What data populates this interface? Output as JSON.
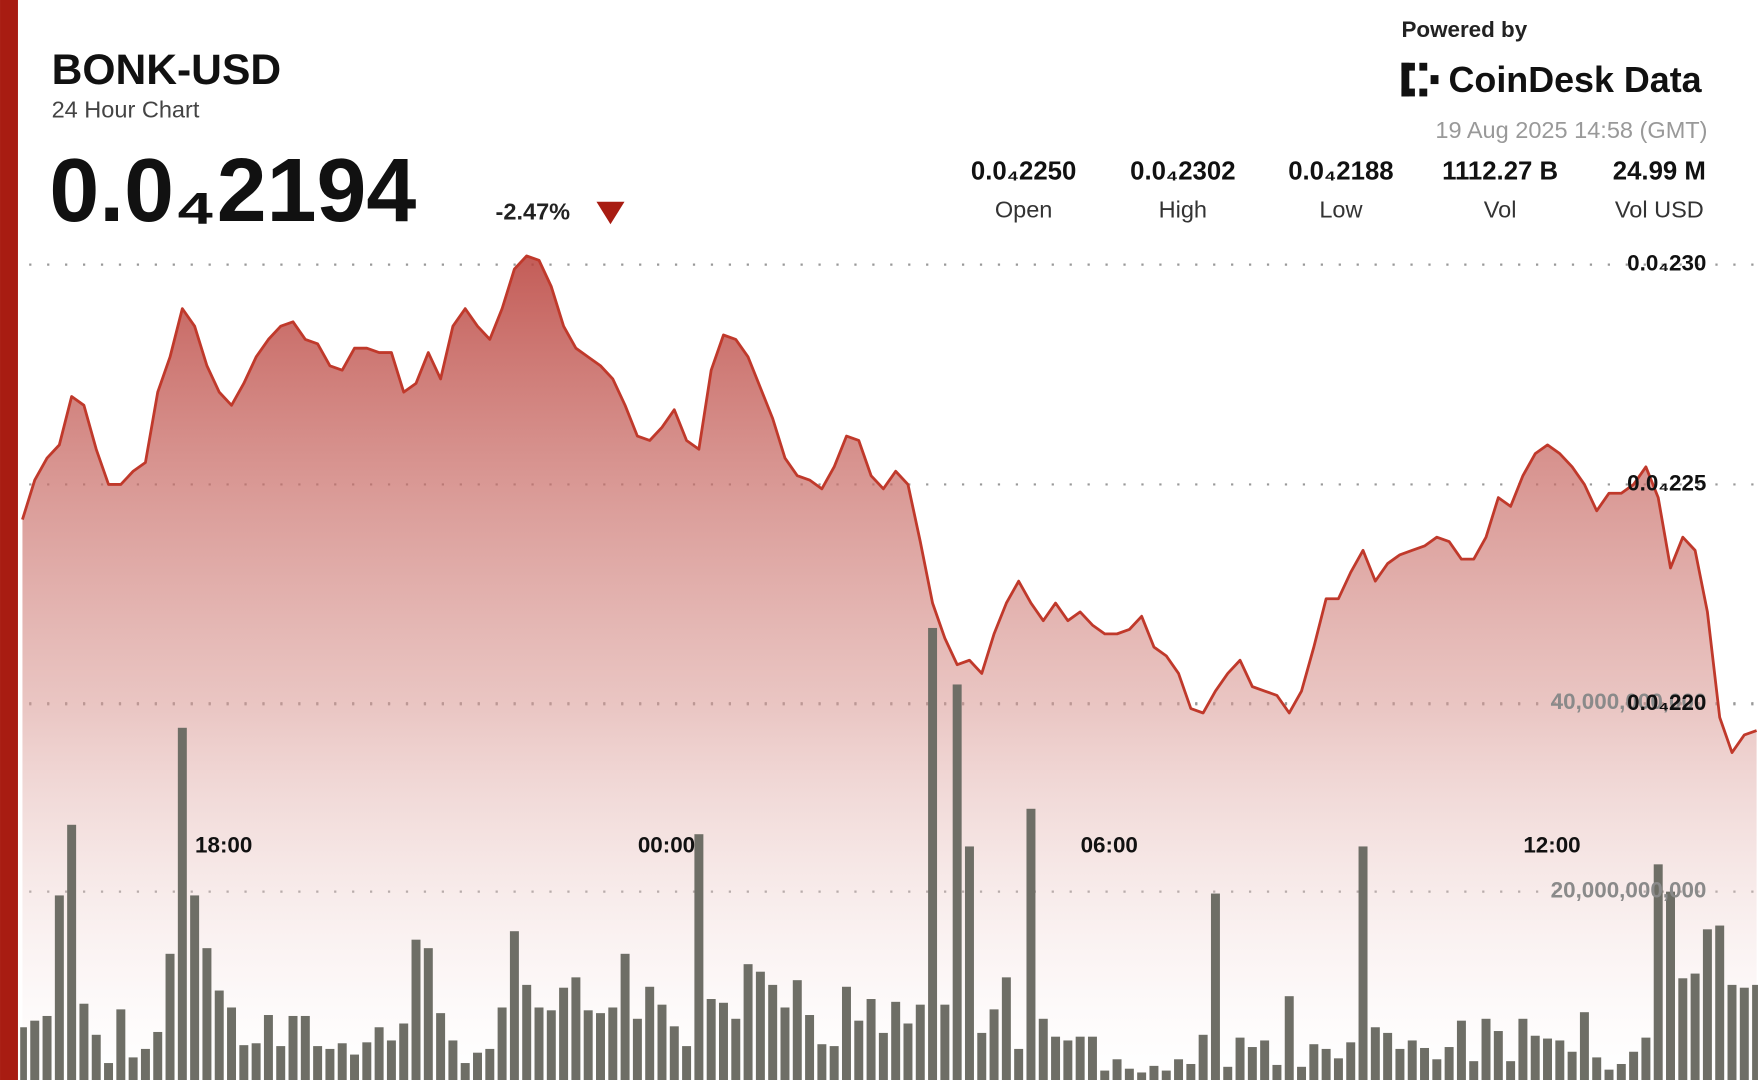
{
  "chart_data": {
    "type": "line",
    "title": "BONK-USD",
    "subtitle": "24 Hour Chart",
    "price": "0.0₄2194",
    "change": "-2.47%",
    "powered_by": "Powered by",
    "brand": "CoinDesk Data",
    "timestamp": "19 Aug 2025 14:58 (GMT)",
    "stats": [
      {
        "text": "0.0₄2250",
        "label": "Open"
      },
      {
        "text": "0.0₄2302",
        "label": "High"
      },
      {
        "text": "0.0₄2188",
        "label": "Low"
      },
      {
        "text": "1112.27 B",
        "label": "Vol"
      },
      {
        "text": "24.99 M",
        "label": "Vol USD"
      }
    ],
    "categories": [
      null,
      null,
      null,
      null,
      null,
      null,
      null,
      null,
      null,
      null,
      null,
      null,
      null,
      null,
      null,
      null,
      "18:00",
      null,
      null,
      null,
      null,
      null,
      null,
      null,
      null,
      null,
      null,
      null,
      null,
      null,
      null,
      null,
      null,
      null,
      null,
      null,
      null,
      null,
      null,
      null,
      null,
      null,
      null,
      null,
      null,
      null,
      null,
      null,
      null,
      null,
      null,
      null,
      "00:00",
      null,
      null,
      null,
      null,
      null,
      null,
      null,
      null,
      null,
      null,
      null,
      null,
      null,
      null,
      null,
      null,
      null,
      null,
      null,
      null,
      null,
      null,
      null,
      null,
      null,
      null,
      null,
      null,
      null,
      null,
      null,
      null,
      null,
      null,
      null,
      "06:00",
      null,
      null,
      null,
      null,
      null,
      null,
      null,
      null,
      null,
      null,
      null,
      null,
      null,
      null,
      null,
      null,
      null,
      null,
      null,
      null,
      null,
      null,
      null,
      null,
      null,
      null,
      null,
      null,
      null,
      null,
      null,
      null,
      null,
      null,
      null,
      "12:00",
      null,
      null,
      null,
      null,
      null,
      null,
      null,
      null,
      null,
      null,
      null,
      null,
      null,
      null,
      null,
      null,
      null
    ],
    "ylim": [
      2.1145e-05,
      2.3041e-05
    ],
    "yticks": [
      {
        "value": 2.3e-05,
        "label": "0.0₄230"
      },
      {
        "value": 2.25e-05,
        "label": "0.0₄225"
      },
      {
        "value": 2.2e-05,
        "label": "0.0₄220"
      }
    ],
    "y2lim": [
      0,
      88490000000.0
    ],
    "y2ticks": [
      {
        "value": 20000000000.0,
        "label": "20,000,000,000"
      },
      {
        "value": 40000000000.0,
        "label": "40,000,000,000"
      }
    ],
    "grid": true,
    "series": [
      {
        "type": "line",
        "color": "#c0392b",
        "values": [
          2.242e-05,
          2.251e-05,
          2.256e-05,
          2.259e-05,
          2.27e-05,
          2.268e-05,
          2.258e-05,
          2.25e-05,
          2.25e-05,
          2.253e-05,
          2.255e-05,
          2.271e-05,
          2.279e-05,
          2.29e-05,
          2.286e-05,
          2.277e-05,
          2.271e-05,
          2.268e-05,
          2.273e-05,
          2.279e-05,
          2.283e-05,
          2.286e-05,
          2.287e-05,
          2.283e-05,
          2.282e-05,
          2.277e-05,
          2.276e-05,
          2.281e-05,
          2.281e-05,
          2.28e-05,
          2.28e-05,
          2.271e-05,
          2.273e-05,
          2.28e-05,
          2.274e-05,
          2.286e-05,
          2.29e-05,
          2.286e-05,
          2.283e-05,
          2.29e-05,
          2.299e-05,
          2.302e-05,
          2.301e-05,
          2.295e-05,
          2.286e-05,
          2.281e-05,
          2.279e-05,
          2.277e-05,
          2.274e-05,
          2.268e-05,
          2.261e-05,
          2.26e-05,
          2.263e-05,
          2.267e-05,
          2.26e-05,
          2.258e-05,
          2.276e-05,
          2.284e-05,
          2.283e-05,
          2.279e-05,
          2.272e-05,
          2.265e-05,
          2.256e-05,
          2.252e-05,
          2.251e-05,
          2.249e-05,
          2.254e-05,
          2.261e-05,
          2.26e-05,
          2.252e-05,
          2.249e-05,
          2.253e-05,
          2.25e-05,
          2.237e-05,
          2.223e-05,
          2.215e-05,
          2.209e-05,
          2.21e-05,
          2.207e-05,
          2.216e-05,
          2.223e-05,
          2.228e-05,
          2.223e-05,
          2.219e-05,
          2.223e-05,
          2.219e-05,
          2.221e-05,
          2.218e-05,
          2.216e-05,
          2.216e-05,
          2.217e-05,
          2.22e-05,
          2.213e-05,
          2.211e-05,
          2.207e-05,
          2.199e-05,
          2.198e-05,
          2.203e-05,
          2.207e-05,
          2.21e-05,
          2.204e-05,
          2.203e-05,
          2.202e-05,
          2.198e-05,
          2.203e-05,
          2.213e-05,
          2.224e-05,
          2.224e-05,
          2.23e-05,
          2.235e-05,
          2.228e-05,
          2.232e-05,
          2.234e-05,
          2.235e-05,
          2.236e-05,
          2.238e-05,
          2.237e-05,
          2.233e-05,
          2.233e-05,
          2.238e-05,
          2.247e-05,
          2.245e-05,
          2.252e-05,
          2.257e-05,
          2.259e-05,
          2.257e-05,
          2.254e-05,
          2.25e-05,
          2.244e-05,
          2.248e-05,
          2.248e-05,
          2.25e-05,
          2.254e-05,
          2.247e-05,
          2.231e-05,
          2.238e-05,
          2.235e-05,
          2.221e-05,
          2.197e-05,
          2.189e-05,
          2.193e-05,
          2.194e-05
        ]
      },
      {
        "type": "bar",
        "axis": "y2",
        "color": "#6e6e66",
        "values": [
          5600000000.0,
          6300000000.0,
          6800000000.0,
          19600000000.0,
          27100000000.0,
          8100000000.0,
          4800000000.0,
          1800000000.0,
          7500000000.0,
          2400000000.0,
          3300000000.0,
          5100000000.0,
          13400000000.0,
          37400000000.0,
          19600000000.0,
          14000000000.0,
          9500000000.0,
          7700000000.0,
          3700000000.0,
          3900000000.0,
          6900000000.0,
          3600000000.0,
          6800000000.0,
          6800000000.0,
          3600000000.0,
          3300000000.0,
          3900000000.0,
          2700000000.0,
          4000000000.0,
          5600000000.0,
          4200000000.0,
          6000000000.0,
          14900000000.0,
          14000000000.0,
          7100000000.0,
          4200000000.0,
          1800000000.0,
          2900000000.0,
          3300000000.0,
          7700000000.0,
          15800000000.0,
          10100000000.0,
          7700000000.0,
          7400000000.0,
          9800000000.0,
          10900000000.0,
          7400000000.0,
          7100000000.0,
          7700000000.0,
          13400000000.0,
          6500000000.0,
          9900000000.0,
          8000000000.0,
          5700000000.0,
          3600000000.0,
          26100000000.0,
          8600000000.0,
          8200000000.0,
          6500000000.0,
          12300000000.0,
          11500000000.0,
          10100000000.0,
          7700000000.0,
          10600000000.0,
          6900000000.0,
          3800000000.0,
          3600000000.0,
          9900000000.0,
          6300000000.0,
          8600000000.0,
          5000000000.0,
          8300000000.0,
          6000000000.0,
          8000000000.0,
          48000000000.0,
          8000000000.0,
          42000000000.0,
          24800000000.0,
          5000000000.0,
          7500000000.0,
          10900000000.0,
          3300000000.0,
          28800000000.0,
          6500000000.0,
          4600000000.0,
          4200000000.0,
          4600000000.0,
          4600000000.0,
          1000000000.0,
          2200000000.0,
          1200000000.0,
          800000000.0,
          1500000000.0,
          1000000000.0,
          2200000000.0,
          1700000000.0,
          4800000000.0,
          19800000000.0,
          1400000000.0,
          4500000000.0,
          3500000000.0,
          4200000000.0,
          1600000000.0,
          8900000000.0,
          1400000000.0,
          3800000000.0,
          3300000000.0,
          2300000000.0,
          4000000000.0,
          24800000000.0,
          5600000000.0,
          5000000000.0,
          3300000000.0,
          4200000000.0,
          3400000000.0,
          2200000000.0,
          3500000000.0,
          6300000000.0,
          2000000000.0,
          6500000000.0,
          5200000000.0,
          2000000000.0,
          6500000000.0,
          4700000000.0,
          4400000000.0,
          4200000000.0,
          3000000000.0,
          7200000000.0,
          2400000000.0,
          1100000000.0,
          1700000000.0,
          3000000000.0,
          4500000000.0,
          22900000000.0,
          20000000000.0,
          10800000000.0,
          11300000000.0,
          16000000000.0,
          16400000000.0,
          10100000000.0,
          9800000000.0,
          10100000000.0
        ]
      }
    ]
  }
}
